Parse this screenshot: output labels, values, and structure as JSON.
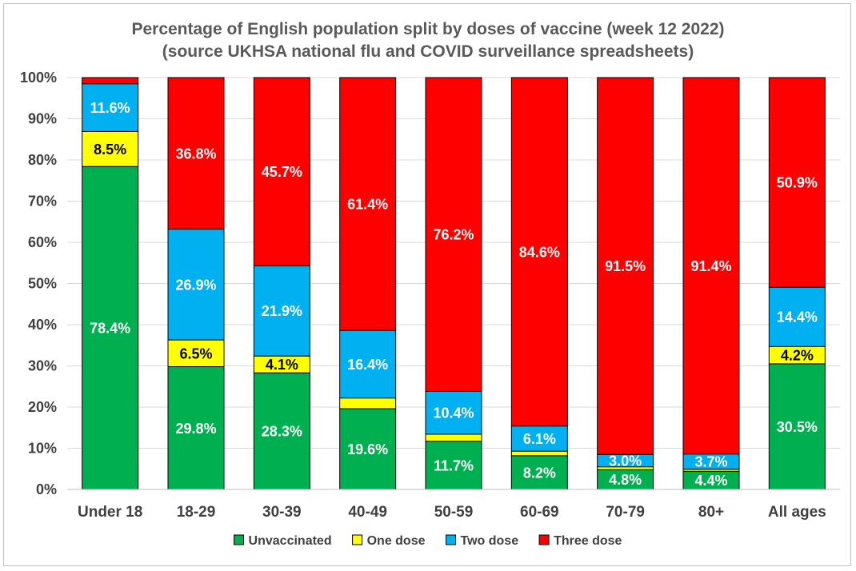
{
  "chart_data": {
    "type": "stacked-bar",
    "title": "Percentage of English population split by doses of vaccine (week 12 2022)",
    "subtitle": "(source UKHSA national flu and COVID surveillance spreadsheets)",
    "xlabel": "",
    "ylabel": "",
    "ylim": [
      0,
      100
    ],
    "ytick_labels": [
      "0%",
      "10%",
      "20%",
      "30%",
      "40%",
      "50%",
      "60%",
      "70%",
      "80%",
      "90%",
      "100%"
    ],
    "grid": true,
    "legend_position": "bottom",
    "categories": [
      "Under 18",
      "18-29",
      "30-39",
      "40-49",
      "50-59",
      "60-69",
      "70-79",
      "80+",
      "All ages"
    ],
    "series": [
      {
        "name": "Unvaccinated",
        "color": "#00b050",
        "label_color": "#ffffff",
        "values": [
          78.4,
          29.8,
          28.3,
          19.6,
          11.7,
          8.2,
          4.8,
          4.4,
          30.5
        ],
        "labels": [
          "78.4%",
          "29.8%",
          "28.3%",
          "19.6%",
          "11.7%",
          "8.2%",
          "4.8%",
          "4.4%",
          "30.5%"
        ]
      },
      {
        "name": "One dose",
        "color": "#ffff00",
        "label_color": "#000000",
        "values": [
          8.5,
          6.5,
          4.1,
          2.6,
          1.7,
          1.1,
          0.7,
          0.5,
          4.2
        ],
        "labels": [
          "8.5%",
          "6.5%",
          "4.1%",
          "",
          "",
          "",
          "",
          "",
          "4.2%"
        ]
      },
      {
        "name": "Two dose",
        "color": "#00b0f0",
        "label_color": "#ffffff",
        "values": [
          11.6,
          26.9,
          21.9,
          16.4,
          10.4,
          6.1,
          3.0,
          3.7,
          14.4
        ],
        "labels": [
          "11.6%",
          "26.9%",
          "21.9%",
          "16.4%",
          "10.4%",
          "6.1%",
          "3.0%",
          "3.7%",
          "14.4%"
        ]
      },
      {
        "name": "Three dose",
        "color": "#ff0000",
        "label_color": "#ffffff",
        "values": [
          1.5,
          36.8,
          45.7,
          61.4,
          76.2,
          84.6,
          91.5,
          91.4,
          50.9
        ],
        "labels": [
          "",
          "36.8%",
          "45.7%",
          "61.4%",
          "76.2%",
          "84.6%",
          "91.5%",
          "91.4%",
          "50.9%"
        ]
      }
    ]
  }
}
